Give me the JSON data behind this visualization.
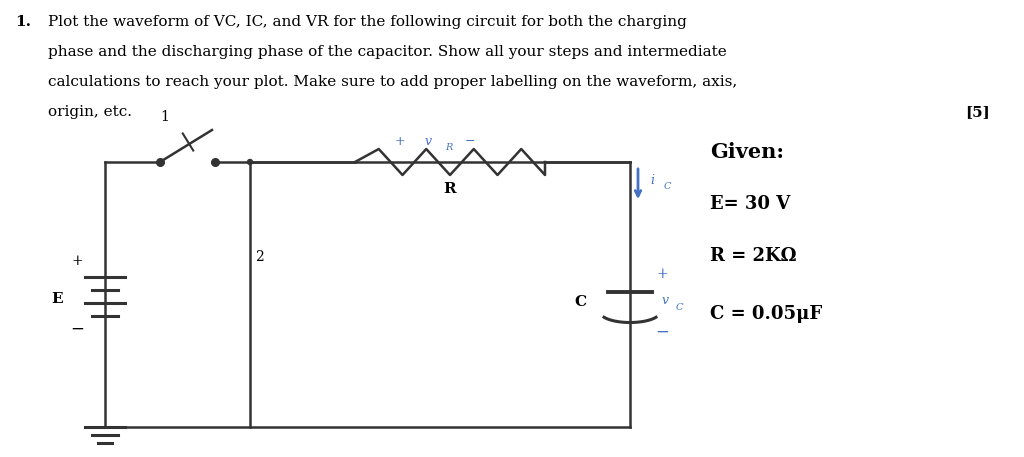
{
  "bg_color": "#ffffff",
  "text_color": "#000000",
  "blue_color": "#4472c4",
  "line_color": "#333333",
  "title_number": "1.",
  "main_text_line1": "Plot the waveform of VC, IC, and VR for the following circuit for both the charging",
  "main_text_line2": "phase and the discharging phase of the capacitor. Show all your steps and intermediate",
  "main_text_line3": "calculations to reach your plot. Make sure to add proper labelling on the waveform, axis,",
  "main_text_line4": "origin, etc.",
  "score": "[5]",
  "given_label": "Given:",
  "E_label": "E= 30 V",
  "R_label": "R = 2KΩ",
  "C_label": "C = 0.05μF",
  "vR_plus": "+",
  "vR_var": "v",
  "vR_sub": "R",
  "vR_minus": "−",
  "R_comp_label": "R",
  "ic_var": "i",
  "ic_sub": "C",
  "vc_var": "v",
  "vc_sub": "C",
  "C_comp_label": "C",
  "E_comp_label": "E",
  "switch_label": "1",
  "node2_label": "2",
  "plus_bat": "+",
  "minus_bat": "−",
  "plus_cap": "+",
  "minus_cap": "−"
}
